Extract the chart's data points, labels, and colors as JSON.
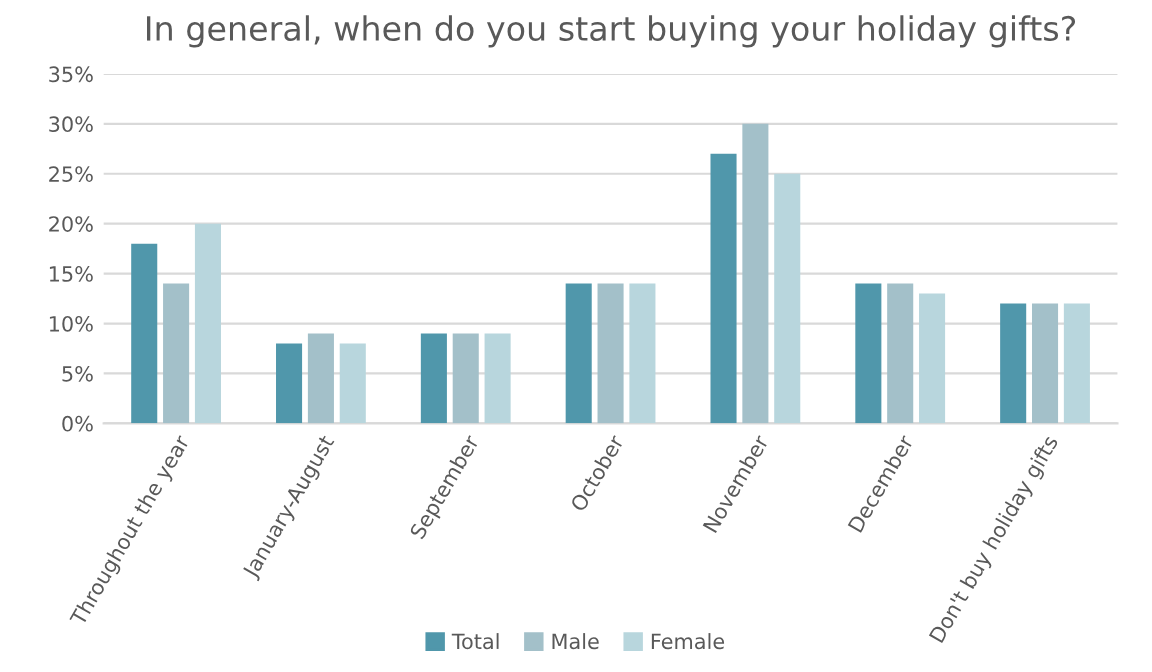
{
  "chart_data": {
    "type": "bar",
    "title": "In general, when do you start buying your holiday gifts?",
    "categories": [
      "Throughout the year",
      "January-August",
      "September",
      "October",
      "November",
      "December",
      "Don't buy holiday gifts"
    ],
    "series": [
      {
        "name": "Total",
        "color": "#5097ab",
        "values": [
          18,
          8,
          9,
          14,
          27,
          14,
          12
        ]
      },
      {
        "name": "Male",
        "color": "#a3c0c9",
        "values": [
          14,
          9,
          9,
          14,
          30,
          14,
          12
        ]
      },
      {
        "name": "Female",
        "color": "#b8d6dd",
        "values": [
          20,
          8,
          9,
          14,
          25,
          13,
          12
        ]
      }
    ],
    "ylim": [
      0,
      35
    ],
    "yticks": [
      {
        "value": 0,
        "label": "0%"
      },
      {
        "value": 5,
        "label": "5%"
      },
      {
        "value": 10,
        "label": "10%"
      },
      {
        "value": 15,
        "label": "15%"
      },
      {
        "value": 20,
        "label": "20%"
      },
      {
        "value": 25,
        "label": "25%"
      },
      {
        "value": 30,
        "label": "30%"
      },
      {
        "value": 35,
        "label": "35%"
      }
    ],
    "grid": "y",
    "legend": "bottom"
  }
}
